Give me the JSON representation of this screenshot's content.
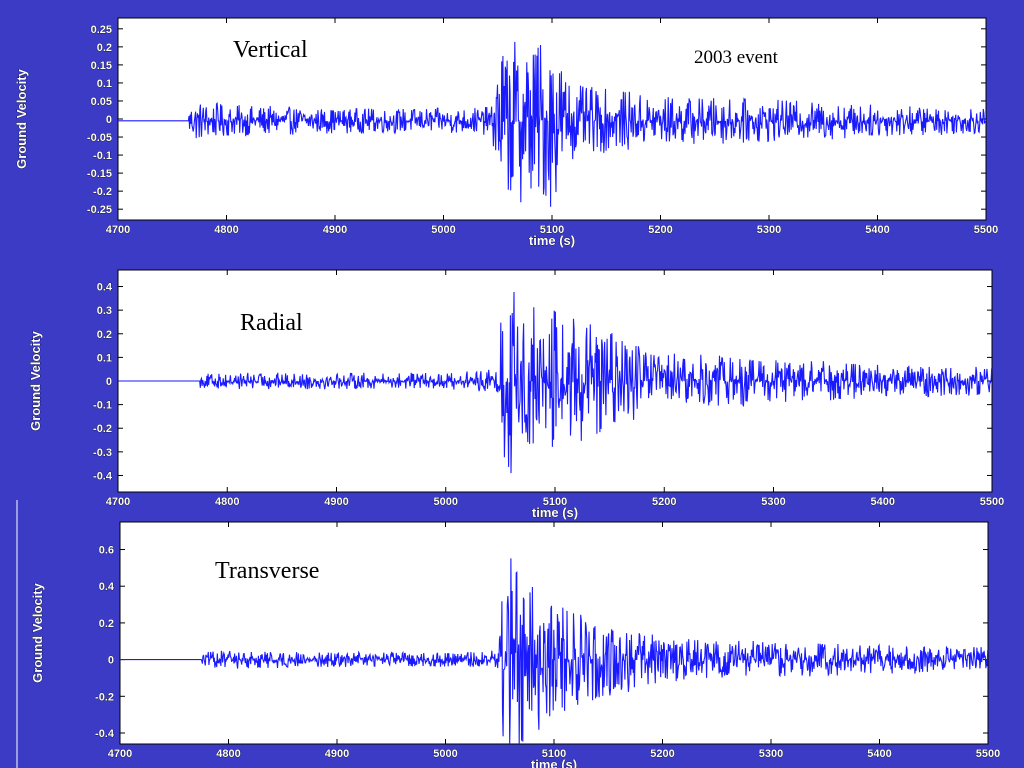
{
  "slide": {
    "background": "#3b3bc6",
    "trace_color": "#1a1aff"
  },
  "chart_data": [
    {
      "type": "line",
      "panel_label": "Vertical",
      "annotation": "2003 event",
      "xlabel": "time (s)",
      "ylabel": "Ground Velocity",
      "xlim": [
        4700,
        5500
      ],
      "ylim": [
        -0.28,
        0.28
      ],
      "xticks": [
        4700,
        4800,
        4900,
        5000,
        5100,
        5200,
        5300,
        5400,
        5500
      ],
      "yticks": [
        0.25,
        0.2,
        0.15,
        0.1,
        0.05,
        0,
        -0.05,
        -0.1,
        -0.15,
        -0.2,
        -0.25
      ],
      "ytick_labels": [
        "0.25",
        "0.2",
        "0.15",
        "0.1",
        "0.05",
        "0",
        "-0.05",
        "-0.1",
        "-0.15",
        "-0.2",
        "-0.25"
      ],
      "trace": {
        "start": 4700,
        "end": 5500,
        "offset": -0.005,
        "onset_time": 4765,
        "arrival_time": 5050,
        "amplitude_envelope": [
          [
            4765,
            0.05
          ],
          [
            4770,
            0.06
          ],
          [
            4800,
            0.045
          ],
          [
            4900,
            0.035
          ],
          [
            5000,
            0.035
          ],
          [
            5045,
            0.04
          ],
          [
            5050,
            0.22
          ],
          [
            5100,
            0.24
          ],
          [
            5120,
            0.1
          ],
          [
            5200,
            0.07
          ],
          [
            5300,
            0.06
          ],
          [
            5400,
            0.045
          ],
          [
            5500,
            0.035
          ]
        ]
      }
    },
    {
      "type": "line",
      "panel_label": "Radial",
      "xlabel": "time (s)",
      "ylabel": "Ground Velocity",
      "xlim": [
        4700,
        5500
      ],
      "ylim": [
        -0.47,
        0.47
      ],
      "xticks": [
        4700,
        4800,
        4900,
        5000,
        5100,
        5200,
        5300,
        5400,
        5500
      ],
      "yticks": [
        0.4,
        0.3,
        0.2,
        0.1,
        0,
        -0.1,
        -0.2,
        -0.3,
        -0.4
      ],
      "ytick_labels": [
        "0.4",
        "0.3",
        "0.2",
        "0.1",
        "0",
        "-0.1",
        "-0.2",
        "-0.3",
        "-0.4"
      ],
      "trace": {
        "start": 4700,
        "end": 5500,
        "offset": 0,
        "onset_time": 4775,
        "arrival_time": 5050,
        "amplitude_envelope": [
          [
            4775,
            0.03
          ],
          [
            4800,
            0.035
          ],
          [
            4900,
            0.035
          ],
          [
            5000,
            0.035
          ],
          [
            5048,
            0.05
          ],
          [
            5050,
            0.3
          ],
          [
            5055,
            0.45
          ],
          [
            5070,
            0.35
          ],
          [
            5100,
            0.3
          ],
          [
            5200,
            0.12
          ],
          [
            5300,
            0.1
          ],
          [
            5400,
            0.07
          ],
          [
            5500,
            0.06
          ]
        ]
      }
    },
    {
      "type": "line",
      "panel_label": "Transverse",
      "xlabel": "time (s)",
      "ylabel": "Ground Velocity",
      "xlim": [
        4700,
        5500
      ],
      "ylim": [
        -0.46,
        0.75
      ],
      "xticks": [
        4700,
        4800,
        4900,
        5000,
        5100,
        5200,
        5300,
        5400,
        5500
      ],
      "yticks": [
        0.6,
        0.4,
        0.2,
        0,
        -0.2,
        -0.4
      ],
      "ytick_labels": [
        "0.6",
        "0.4",
        "0.2",
        "0",
        "-0.2",
        "-0.4"
      ],
      "trace": {
        "start": 4700,
        "end": 5500,
        "offset": 0,
        "onset_time": 4775,
        "arrival_time": 5050,
        "amplitude_envelope": [
          [
            4775,
            0.04
          ],
          [
            4800,
            0.05
          ],
          [
            4900,
            0.04
          ],
          [
            5000,
            0.04
          ],
          [
            5048,
            0.05
          ],
          [
            5050,
            0.35
          ],
          [
            5055,
            0.75
          ],
          [
            5075,
            0.45
          ],
          [
            5100,
            0.3
          ],
          [
            5200,
            0.12
          ],
          [
            5300,
            0.1
          ],
          [
            5400,
            0.08
          ],
          [
            5500,
            0.07
          ]
        ]
      }
    }
  ]
}
